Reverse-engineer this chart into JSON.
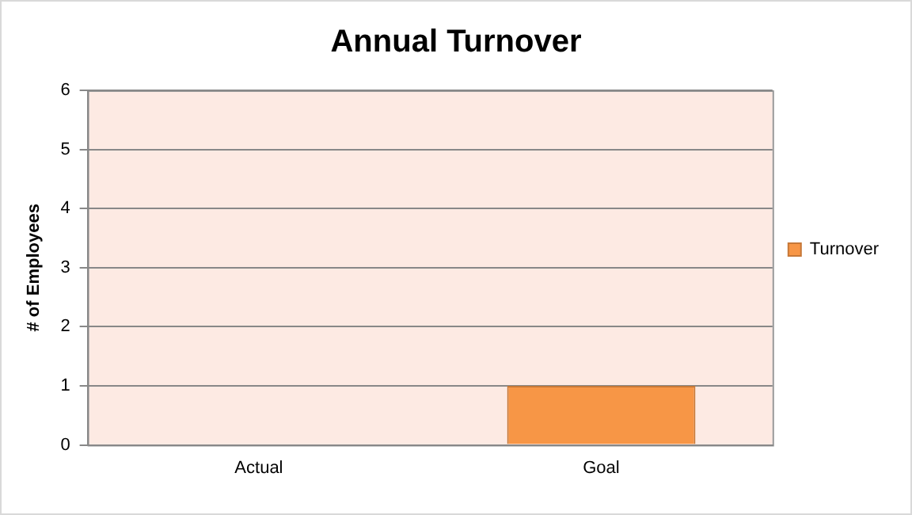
{
  "chart_data": {
    "type": "bar",
    "title": "Annual Turnover",
    "ylabel": "# of Employees",
    "categories": [
      "Actual",
      "Goal"
    ],
    "series": [
      {
        "name": "Turnover",
        "color": "#f79646",
        "values": [
          0,
          1
        ]
      }
    ],
    "ylim": [
      0,
      6
    ],
    "yticks": [
      0,
      1,
      2,
      3,
      4,
      5,
      6
    ],
    "grid": "y",
    "legend": "right"
  }
}
